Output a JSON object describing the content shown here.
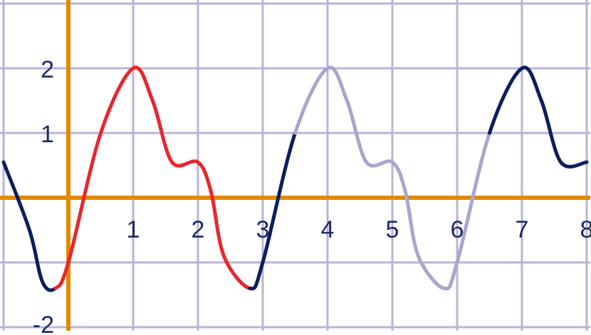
{
  "chart_data": {
    "type": "line",
    "title": "",
    "xlabel": "",
    "ylabel": "",
    "xlim": [
      -1,
      8
    ],
    "ylim": [
      -2,
      3
    ],
    "grid": true,
    "x_tick_labels": [
      "1",
      "2",
      "3",
      "4",
      "5",
      "6",
      "7",
      "8"
    ],
    "y_tick_labels": [
      "2",
      "1",
      "-2"
    ],
    "period": 3,
    "x": [
      -1.0,
      -0.6,
      -0.4,
      -0.2,
      0.0,
      0.5,
      1.0,
      1.3,
      1.6,
      2.0,
      2.2,
      2.4,
      2.8,
      3.0,
      3.5,
      4.0,
      4.3,
      4.6,
      5.0,
      5.2,
      5.4,
      5.8,
      6.0,
      6.5,
      7.0,
      7.3,
      7.6,
      8.0
    ],
    "y": [
      0.55,
      -0.5,
      -1.3,
      -1.4,
      -1.0,
      1.0,
      2.0,
      1.5,
      0.55,
      0.55,
      0.1,
      -0.9,
      -1.4,
      -1.0,
      1.0,
      2.0,
      1.5,
      0.55,
      0.55,
      0.1,
      -0.9,
      -1.4,
      -1.0,
      1.0,
      2.0,
      1.5,
      0.55,
      0.55
    ],
    "series": [
      {
        "x_range": [
          -1.0,
          -0.2
        ],
        "color": "#0a1f5c"
      },
      {
        "x_range": [
          -0.2,
          2.8
        ],
        "color": "#e8262d"
      },
      {
        "x_range": [
          2.8,
          3.5
        ],
        "color": "#0a1f5c"
      },
      {
        "x_range": [
          3.5,
          6.5
        ],
        "color": "#a9a5cf"
      },
      {
        "x_range": [
          6.5,
          8.0
        ],
        "color": "#0a1f5c"
      }
    ],
    "colors": {
      "grid": "#b8b4d6",
      "axes": "#e08a00",
      "tick_text": "#1a2a66"
    }
  }
}
